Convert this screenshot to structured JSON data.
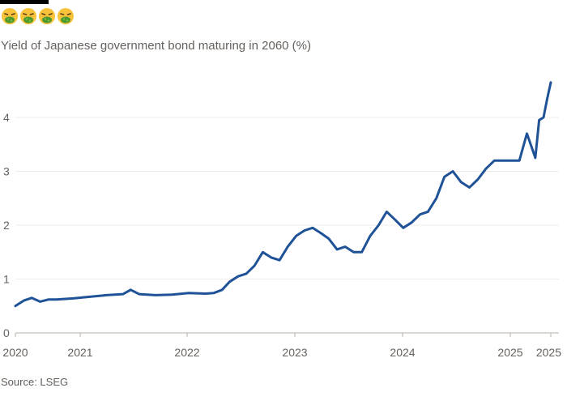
{
  "header": {
    "emoji_icons": [
      "nauseated-face-icon",
      "nauseated-face-icon",
      "nauseated-face-icon",
      "nauseated-face-icon"
    ],
    "subtitle": "Yield of Japanese government bond maturing in 2060 (%)"
  },
  "footer": {
    "source": "Source: LSEG"
  },
  "colors": {
    "line": "#1f5297",
    "grid": "#f0ede8",
    "axis": "#b7b1a9",
    "emoji_face": "#f8c33a",
    "emoji_green": "#4e9a2f"
  },
  "chart_data": {
    "type": "line",
    "title": "",
    "subtitle": "Yield of Japanese government bond maturing in 2060 (%)",
    "xlabel": "",
    "ylabel": "",
    "ylim": [
      0,
      4.7
    ],
    "yticks": [
      0,
      1,
      2,
      3,
      4
    ],
    "xticks": [
      "2020",
      "2021",
      "2022",
      "2023",
      "2024",
      "2025",
      "2025"
    ],
    "xlim": [
      "2020-01-01",
      "2025-05-28"
    ],
    "grid": true,
    "legend": "none",
    "series": [
      {
        "name": "",
        "points": [
          [
            "2020-01-01",
            0.5
          ],
          [
            "2020-02-01",
            0.6
          ],
          [
            "2020-03-01",
            0.65
          ],
          [
            "2020-04-01",
            0.58
          ],
          [
            "2020-05-01",
            0.62
          ],
          [
            "2020-06-01",
            0.62
          ],
          [
            "2020-08-01",
            0.64
          ],
          [
            "2020-10-01",
            0.67
          ],
          [
            "2020-12-01",
            0.7
          ],
          [
            "2021-02-01",
            0.72
          ],
          [
            "2021-03-01",
            0.8
          ],
          [
            "2021-04-01",
            0.72
          ],
          [
            "2021-06-01",
            0.7
          ],
          [
            "2021-08-01",
            0.71
          ],
          [
            "2021-10-01",
            0.74
          ],
          [
            "2021-12-01",
            0.73
          ],
          [
            "2022-01-01",
            0.74
          ],
          [
            "2022-02-01",
            0.8
          ],
          [
            "2022-03-01",
            0.95
          ],
          [
            "2022-04-01",
            1.05
          ],
          [
            "2022-05-01",
            1.1
          ],
          [
            "2022-06-01",
            1.25
          ],
          [
            "2022-07-01",
            1.5
          ],
          [
            "2022-08-01",
            1.4
          ],
          [
            "2022-09-01",
            1.35
          ],
          [
            "2022-10-01",
            1.6
          ],
          [
            "2022-11-01",
            1.8
          ],
          [
            "2022-12-01",
            1.9
          ],
          [
            "2023-01-01",
            1.95
          ],
          [
            "2023-02-01",
            1.85
          ],
          [
            "2023-03-01",
            1.75
          ],
          [
            "2023-04-01",
            1.55
          ],
          [
            "2023-05-01",
            1.6
          ],
          [
            "2023-06-01",
            1.5
          ],
          [
            "2023-07-01",
            1.5
          ],
          [
            "2023-08-01",
            1.8
          ],
          [
            "2023-09-01",
            2.0
          ],
          [
            "2023-10-01",
            2.25
          ],
          [
            "2023-11-01",
            2.1
          ],
          [
            "2023-12-01",
            1.95
          ],
          [
            "2024-01-01",
            2.05
          ],
          [
            "2024-02-01",
            2.2
          ],
          [
            "2024-03-01",
            2.25
          ],
          [
            "2024-04-01",
            2.5
          ],
          [
            "2024-05-01",
            2.9
          ],
          [
            "2024-06-01",
            3.0
          ],
          [
            "2024-07-01",
            2.8
          ],
          [
            "2024-08-01",
            2.7
          ],
          [
            "2024-09-01",
            2.85
          ],
          [
            "2024-10-01",
            3.05
          ],
          [
            "2024-11-01",
            3.2
          ],
          [
            "2024-12-01",
            3.2
          ],
          [
            "2025-01-01",
            3.2
          ],
          [
            "2025-02-01",
            3.2
          ],
          [
            "2025-03-01",
            3.7
          ],
          [
            "2025-04-01",
            3.25
          ],
          [
            "2025-04-15",
            3.95
          ],
          [
            "2025-05-01",
            4.0
          ],
          [
            "2025-05-15",
            4.35
          ],
          [
            "2025-05-28",
            4.65
          ]
        ]
      }
    ]
  }
}
